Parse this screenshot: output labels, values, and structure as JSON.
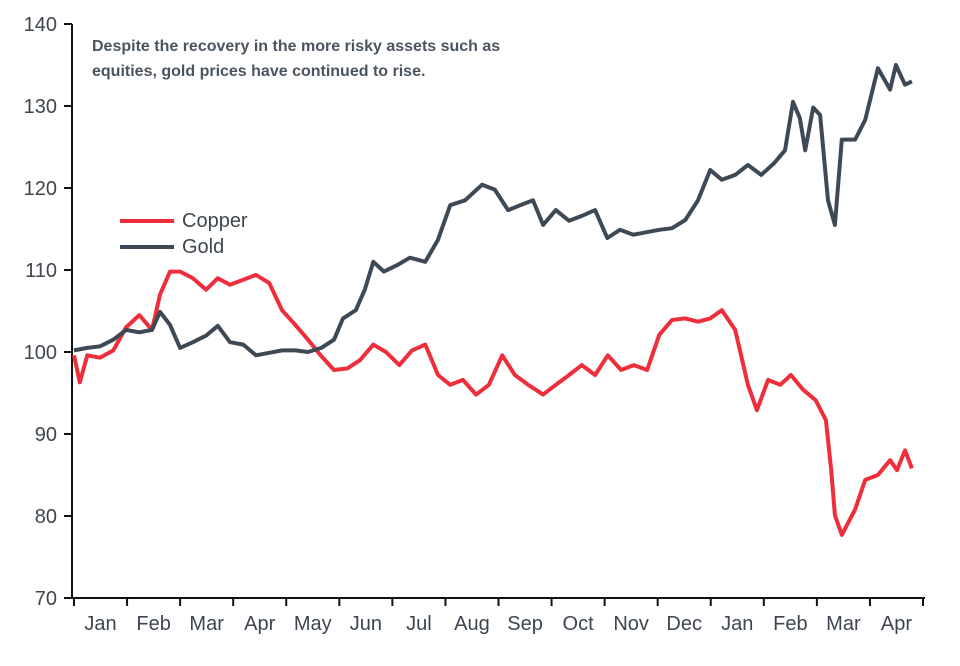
{
  "chart_data": {
    "type": "line",
    "title": "",
    "annotation": "Despite the recovery in the more risky assets such as equities, gold prices have continued to rise.",
    "xlabel": "",
    "ylabel": "",
    "x_tick_labels": [
      "Jan",
      "Feb",
      "Mar",
      "Apr",
      "May",
      "Jun",
      "Jul",
      "Aug",
      "Sep",
      "Oct",
      "Nov",
      "Dec",
      "Jan",
      "Feb",
      "Mar",
      "Apr"
    ],
    "y_ticks": [
      70,
      80,
      90,
      100,
      110,
      120,
      130,
      140
    ],
    "ylim": [
      70,
      140
    ],
    "xlim_months": [
      0,
      16
    ],
    "grid": false,
    "legend_placement": "left, mid-upper",
    "series": [
      {
        "name": "Copper",
        "color": "#ee2e3a",
        "points": [
          [
            0,
            99.6
          ],
          [
            0.11,
            96.3
          ],
          [
            0.25,
            99.6
          ],
          [
            0.49,
            99.3
          ],
          [
            0.74,
            100.2
          ],
          [
            0.98,
            103
          ],
          [
            1.23,
            104.5
          ],
          [
            1.47,
            102.7
          ],
          [
            1.62,
            107
          ],
          [
            1.81,
            109.8
          ],
          [
            2.0,
            109.8
          ],
          [
            2.24,
            109
          ],
          [
            2.49,
            107.6
          ],
          [
            2.71,
            109
          ],
          [
            2.94,
            108.2
          ],
          [
            3.19,
            108.8
          ],
          [
            3.43,
            109.4
          ],
          [
            3.68,
            108.4
          ],
          [
            3.92,
            105.1
          ],
          [
            4.17,
            103.3
          ],
          [
            4.41,
            101.5
          ],
          [
            4.66,
            99.5
          ],
          [
            4.9,
            97.8
          ],
          [
            5.15,
            98
          ],
          [
            5.39,
            99
          ],
          [
            5.64,
            100.9
          ],
          [
            5.88,
            100
          ],
          [
            6.13,
            98.4
          ],
          [
            6.37,
            100.2
          ],
          [
            6.62,
            100.9
          ],
          [
            6.86,
            97.2
          ],
          [
            7.09,
            96
          ],
          [
            7.33,
            96.6
          ],
          [
            7.58,
            94.8
          ],
          [
            7.82,
            96
          ],
          [
            8.07,
            99.6
          ],
          [
            8.31,
            97.2
          ],
          [
            8.56,
            96
          ],
          [
            8.84,
            94.8
          ],
          [
            9.08,
            96
          ],
          [
            9.33,
            97.2
          ],
          [
            9.57,
            98.4
          ],
          [
            9.82,
            97.2
          ],
          [
            10.06,
            99.6
          ],
          [
            10.31,
            97.8
          ],
          [
            10.55,
            98.4
          ],
          [
            10.8,
            97.8
          ],
          [
            11.03,
            102.1
          ],
          [
            11.27,
            103.9
          ],
          [
            11.52,
            104.1
          ],
          [
            11.76,
            103.7
          ],
          [
            11.99,
            104.1
          ],
          [
            12.21,
            105.1
          ],
          [
            12.46,
            102.7
          ],
          [
            12.7,
            96
          ],
          [
            12.87,
            92.9
          ],
          [
            13.08,
            96.6
          ],
          [
            13.31,
            96
          ],
          [
            13.51,
            97.2
          ],
          [
            13.74,
            95.4
          ],
          [
            13.98,
            94.1
          ],
          [
            14.17,
            91.7
          ],
          [
            14.27,
            85.6
          ],
          [
            14.34,
            80.1
          ],
          [
            14.47,
            77.7
          ],
          [
            14.72,
            80.8
          ],
          [
            14.91,
            84.4
          ],
          [
            15.15,
            85
          ],
          [
            15.38,
            86.8
          ],
          [
            15.51,
            85.6
          ],
          [
            15.66,
            88
          ],
          [
            15.79,
            85.8
          ]
        ]
      },
      {
        "name": "Gold",
        "color": "#3d4a55",
        "points": [
          [
            0,
            100.2
          ],
          [
            0.25,
            100.5
          ],
          [
            0.49,
            100.7
          ],
          [
            0.74,
            101.5
          ],
          [
            0.98,
            102.7
          ],
          [
            1.23,
            102.4
          ],
          [
            1.47,
            102.7
          ],
          [
            1.62,
            104.9
          ],
          [
            1.81,
            103.3
          ],
          [
            2.0,
            100.5
          ],
          [
            2.24,
            101.2
          ],
          [
            2.49,
            102
          ],
          [
            2.71,
            103.2
          ],
          [
            2.94,
            101.2
          ],
          [
            3.19,
            100.9
          ],
          [
            3.43,
            99.6
          ],
          [
            3.68,
            99.9
          ],
          [
            3.92,
            100.2
          ],
          [
            4.17,
            100.2
          ],
          [
            4.41,
            100
          ],
          [
            4.66,
            100.5
          ],
          [
            4.9,
            101.5
          ],
          [
            5.07,
            104.1
          ],
          [
            5.31,
            105.1
          ],
          [
            5.48,
            107.6
          ],
          [
            5.64,
            111
          ],
          [
            5.84,
            109.8
          ],
          [
            6.09,
            110.6
          ],
          [
            6.33,
            111.5
          ],
          [
            6.62,
            111
          ],
          [
            6.86,
            113.7
          ],
          [
            7.09,
            117.9
          ],
          [
            7.37,
            118.5
          ],
          [
            7.69,
            120.4
          ],
          [
            7.93,
            119.8
          ],
          [
            8.18,
            117.3
          ],
          [
            8.41,
            117.9
          ],
          [
            8.65,
            118.5
          ],
          [
            8.84,
            115.5
          ],
          [
            9.08,
            117.3
          ],
          [
            9.33,
            116
          ],
          [
            9.57,
            116.6
          ],
          [
            9.82,
            117.3
          ],
          [
            10.05,
            113.9
          ],
          [
            10.29,
            114.9
          ],
          [
            10.54,
            114.3
          ],
          [
            10.78,
            114.6
          ],
          [
            11.03,
            114.9
          ],
          [
            11.27,
            115.1
          ],
          [
            11.52,
            116.1
          ],
          [
            11.76,
            118.5
          ],
          [
            11.99,
            122.2
          ],
          [
            12.21,
            121
          ],
          [
            12.46,
            121.6
          ],
          [
            12.7,
            122.8
          ],
          [
            12.95,
            121.6
          ],
          [
            13.19,
            123
          ],
          [
            13.4,
            124.6
          ],
          [
            13.55,
            130.5
          ],
          [
            13.68,
            128.5
          ],
          [
            13.78,
            124.6
          ],
          [
            13.93,
            129.8
          ],
          [
            14.06,
            128.9
          ],
          [
            14.21,
            118.5
          ],
          [
            14.34,
            115.5
          ],
          [
            14.47,
            125.9
          ],
          [
            14.72,
            125.9
          ],
          [
            14.91,
            128.3
          ],
          [
            15.15,
            134.6
          ],
          [
            15.38,
            132
          ],
          [
            15.49,
            135
          ],
          [
            15.66,
            132.6
          ],
          [
            15.79,
            133
          ]
        ]
      }
    ]
  }
}
